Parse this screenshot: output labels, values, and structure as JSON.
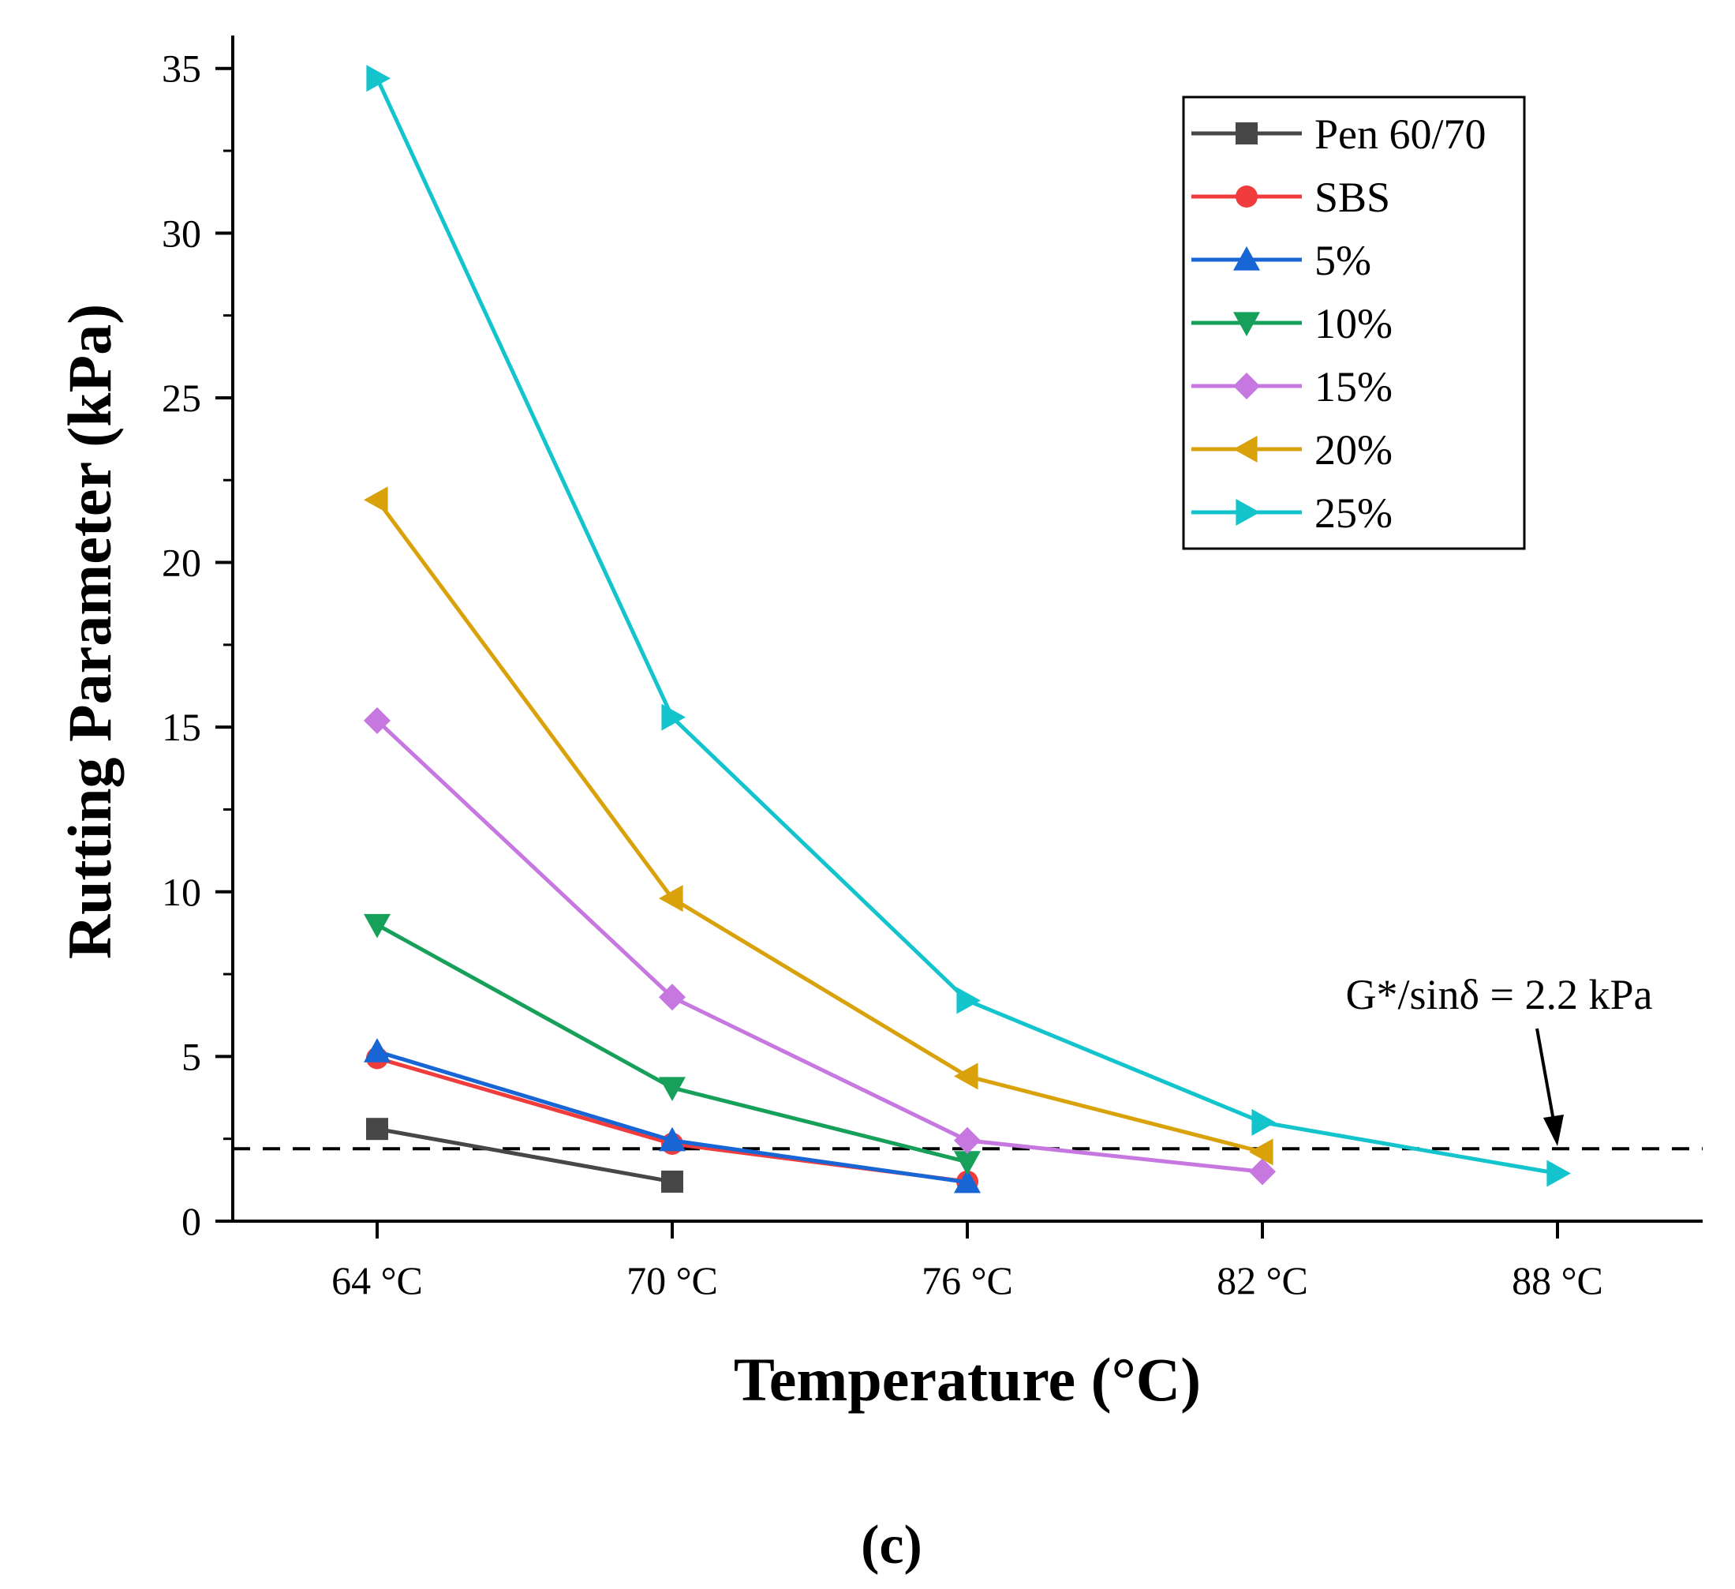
{
  "chart_data": {
    "type": "line",
    "categories": [
      "64 °C",
      "70 °C",
      "76 °C",
      "82 °C",
      "88 °C"
    ],
    "xlabel": "Temperature (°C)",
    "ylabel": "Rutting Parameter (kPa)",
    "ylim": [
      0,
      36
    ],
    "yticks": [
      0,
      5,
      10,
      15,
      20,
      25,
      30,
      35
    ],
    "legend_position": "top-right",
    "grid": false,
    "series": [
      {
        "name": "Pen 60/70",
        "color": "#474747",
        "marker": "square",
        "values": [
          2.8,
          1.2,
          null,
          null,
          null
        ]
      },
      {
        "name": "SBS",
        "color": "#f03c3c",
        "marker": "circle",
        "values": [
          4.95,
          2.35,
          1.2,
          null,
          null
        ]
      },
      {
        "name": "5%",
        "color": "#1866d6",
        "marker": "triangle-up",
        "values": [
          5.15,
          2.45,
          1.18,
          null,
          null
        ]
      },
      {
        "name": "10%",
        "color": "#17a05a",
        "marker": "triangle-down",
        "values": [
          9.0,
          4.05,
          1.8,
          null,
          null
        ]
      },
      {
        "name": "15%",
        "color": "#c777e0",
        "marker": "diamond",
        "values": [
          15.2,
          6.8,
          2.45,
          1.5,
          null
        ]
      },
      {
        "name": "20%",
        "color": "#d9a10a",
        "marker": "triangle-left",
        "values": [
          21.9,
          9.8,
          4.4,
          2.1,
          null
        ]
      },
      {
        "name": "25%",
        "color": "#14c4cc",
        "marker": "triangle-right",
        "values": [
          34.7,
          15.3,
          6.7,
          3.0,
          1.45
        ]
      }
    ],
    "reference_line": {
      "value": 2.2,
      "style": "dashed",
      "label": "G*/sinδ = 2.2 kPa"
    },
    "panel_label": "(c)"
  }
}
